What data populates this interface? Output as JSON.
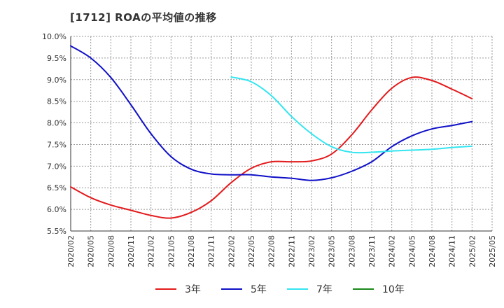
{
  "title": "[1712]  ROAの平均値の推移",
  "chart_data": {
    "type": "line",
    "title": "[1712]  ROAの平均値の推移",
    "ylim": [
      5.5,
      10.0
    ],
    "y_ticks": [
      "10.0%",
      "9.5%",
      "9.0%",
      "8.5%",
      "8.0%",
      "7.5%",
      "7.0%",
      "6.5%",
      "6.0%",
      "5.5%"
    ],
    "y_tick_values": [
      10.0,
      9.5,
      9.0,
      8.5,
      8.0,
      7.5,
      7.0,
      6.5,
      6.0,
      5.5
    ],
    "x_ticks": [
      "2020/02",
      "2020/05",
      "2020/08",
      "2020/11",
      "2021/02",
      "2021/05",
      "2021/08",
      "2021/11",
      "2022/02",
      "2022/05",
      "2022/08",
      "2022/11",
      "2023/02",
      "2023/05",
      "2023/08",
      "2023/11",
      "2024/02",
      "2024/05",
      "2024/08",
      "2024/11",
      "2025/02",
      "2025/05"
    ],
    "grid": true,
    "legend_position": "bottom",
    "series": [
      {
        "name": "3年",
        "color": "#e31a1c",
        "points": [
          [
            0,
            6.52
          ],
          [
            1,
            6.27
          ],
          [
            2,
            6.1
          ],
          [
            3,
            5.98
          ],
          [
            4,
            5.86
          ],
          [
            5,
            5.8
          ],
          [
            6,
            5.93
          ],
          [
            7,
            6.2
          ],
          [
            8,
            6.62
          ],
          [
            9,
            6.95
          ],
          [
            10,
            7.1
          ],
          [
            11,
            7.1
          ],
          [
            12,
            7.12
          ],
          [
            13,
            7.28
          ],
          [
            14,
            7.72
          ],
          [
            15,
            8.3
          ],
          [
            16,
            8.8
          ],
          [
            17,
            9.05
          ],
          [
            18,
            8.98
          ],
          [
            19,
            8.78
          ],
          [
            20,
            8.56
          ]
        ]
      },
      {
        "name": "5年",
        "color": "#1010c8",
        "points": [
          [
            0,
            9.78
          ],
          [
            1,
            9.5
          ],
          [
            2,
            9.05
          ],
          [
            3,
            8.42
          ],
          [
            4,
            7.75
          ],
          [
            5,
            7.22
          ],
          [
            6,
            6.93
          ],
          [
            7,
            6.82
          ],
          [
            8,
            6.8
          ],
          [
            9,
            6.8
          ],
          [
            10,
            6.75
          ],
          [
            11,
            6.72
          ],
          [
            12,
            6.67
          ],
          [
            13,
            6.73
          ],
          [
            14,
            6.88
          ],
          [
            15,
            7.1
          ],
          [
            16,
            7.45
          ],
          [
            17,
            7.7
          ],
          [
            18,
            7.86
          ],
          [
            19,
            7.94
          ],
          [
            20,
            8.03
          ]
        ]
      },
      {
        "name": "7年",
        "color": "#33e5f0",
        "points": [
          [
            8,
            9.06
          ],
          [
            9,
            8.95
          ],
          [
            10,
            8.63
          ],
          [
            11,
            8.15
          ],
          [
            12,
            7.75
          ],
          [
            13,
            7.45
          ],
          [
            14,
            7.32
          ],
          [
            15,
            7.32
          ],
          [
            16,
            7.35
          ],
          [
            17,
            7.37
          ],
          [
            18,
            7.39
          ],
          [
            19,
            7.43
          ],
          [
            20,
            7.46
          ]
        ]
      },
      {
        "name": "10年",
        "color": "#1a8a1a",
        "points": []
      }
    ]
  }
}
